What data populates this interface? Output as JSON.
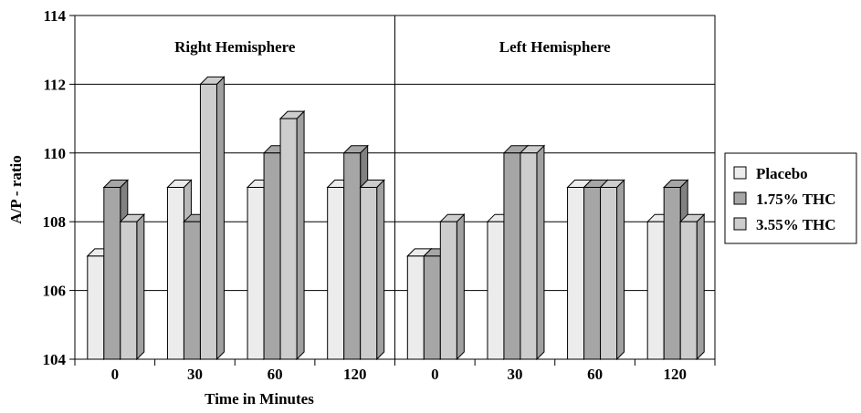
{
  "chart_data": {
    "type": "bar",
    "xlabel": "Time in Minutes",
    "ylabel": "A/P - ratio",
    "ylim": [
      104,
      114
    ],
    "yticks": [
      104,
      106,
      108,
      110,
      112,
      114
    ],
    "grid": true,
    "legend_position": "right",
    "panels": [
      {
        "label": "Right Hemisphere",
        "categories": [
          "0",
          "30",
          "60",
          "120"
        ]
      },
      {
        "label": "Left Hemisphere",
        "categories": [
          "0",
          "30",
          "60",
          "120"
        ]
      }
    ],
    "series": [
      {
        "name": "Placebo",
        "color": "#ececec",
        "values": [
          107,
          109,
          109,
          109,
          107,
          108,
          109,
          108
        ]
      },
      {
        "name": "1.75% THC",
        "color": "#a6a6a6",
        "values": [
          109,
          108,
          110,
          110,
          107,
          110,
          109,
          109
        ]
      },
      {
        "name": "3.55% THC",
        "color": "#cdcdcd",
        "values": [
          108,
          112,
          111,
          109,
          108,
          110,
          109,
          108
        ]
      }
    ]
  }
}
